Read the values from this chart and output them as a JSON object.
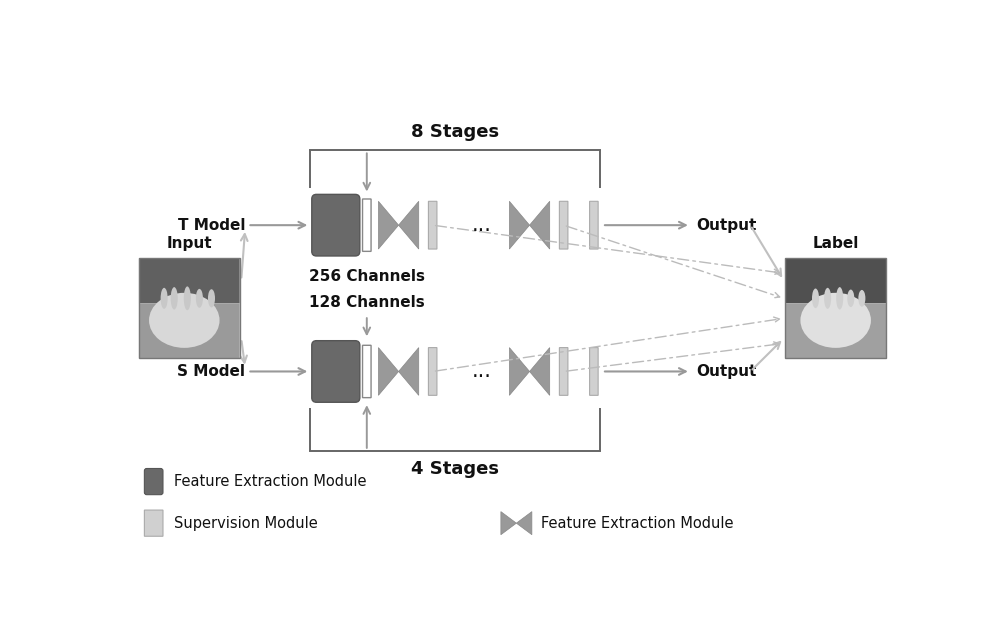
{
  "bg_color": "#ffffff",
  "dark_gray": "#696969",
  "mid_gray": "#999999",
  "light_gray": "#c0c0c0",
  "very_light_gray": "#d4d4d4",
  "supervision_color": "#d0d0d0",
  "bracket_color": "#666666",
  "arrow_color": "#aaaaaa",
  "text_color": "#111111",
  "title_text": "8 Stages",
  "bottom_text": "4 Stages",
  "t_model_label": "T Model",
  "s_model_label": "S Model",
  "input_label": "Input",
  "label_label": "Label",
  "output_t_label": "Output",
  "output_s_label": "Output",
  "channels_256": "256 Channels",
  "channels_128": "128 Channels",
  "legend1_text": "Feature Extraction Module",
  "legend2_text": "Supervision Module",
  "legend4_text": "Feature Extraction Module"
}
